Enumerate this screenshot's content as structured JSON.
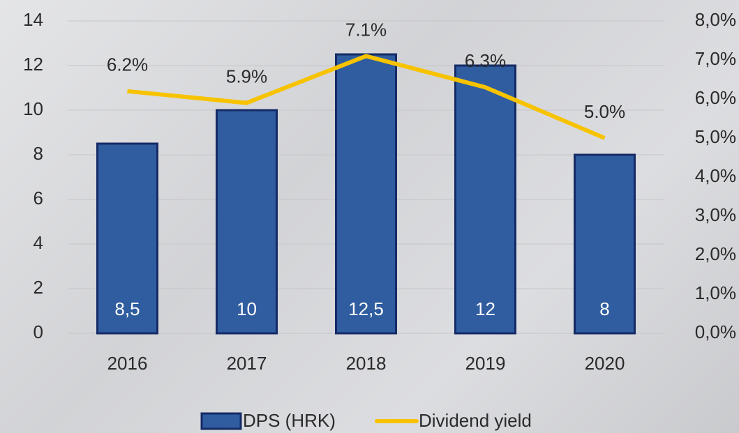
{
  "chart_data": {
    "type": "bar",
    "categories": [
      "2016",
      "2017",
      "2018",
      "2019",
      "2020"
    ],
    "series": [
      {
        "name": "DPS (HRK)",
        "type": "bar",
        "color": "#2f5d9f",
        "values": [
          8.5,
          10,
          12.5,
          12,
          8
        ],
        "value_labels": [
          "8,5",
          "10",
          "12,5",
          "12",
          "8"
        ]
      },
      {
        "name": "Dividend yield",
        "type": "line",
        "axis": "y2",
        "color": "#f7c300",
        "values": [
          6.2,
          5.9,
          7.1,
          6.3,
          5.0
        ],
        "value_labels": [
          "6.2%",
          "5.9%",
          "7.1%",
          "6.3%",
          "5.0%"
        ]
      }
    ],
    "ylim": [
      0,
      14
    ],
    "yticks": [
      0,
      2,
      4,
      6,
      8,
      10,
      12,
      14
    ],
    "y2lim": [
      0,
      8
    ],
    "y2ticks": [
      {
        "value": 0,
        "label": "0,0%"
      },
      {
        "value": 1,
        "label": "1,0%"
      },
      {
        "value": 2,
        "label": "2,0%"
      },
      {
        "value": 3,
        "label": "3,0%"
      },
      {
        "value": 4,
        "label": "4,0%"
      },
      {
        "value": 5,
        "label": "5,0%"
      },
      {
        "value": 6,
        "label": "6,0%"
      },
      {
        "value": 7,
        "label": "7,0%"
      },
      {
        "value": 8,
        "label": "8,0%"
      }
    ],
    "grid": true,
    "legend": "bottom"
  }
}
